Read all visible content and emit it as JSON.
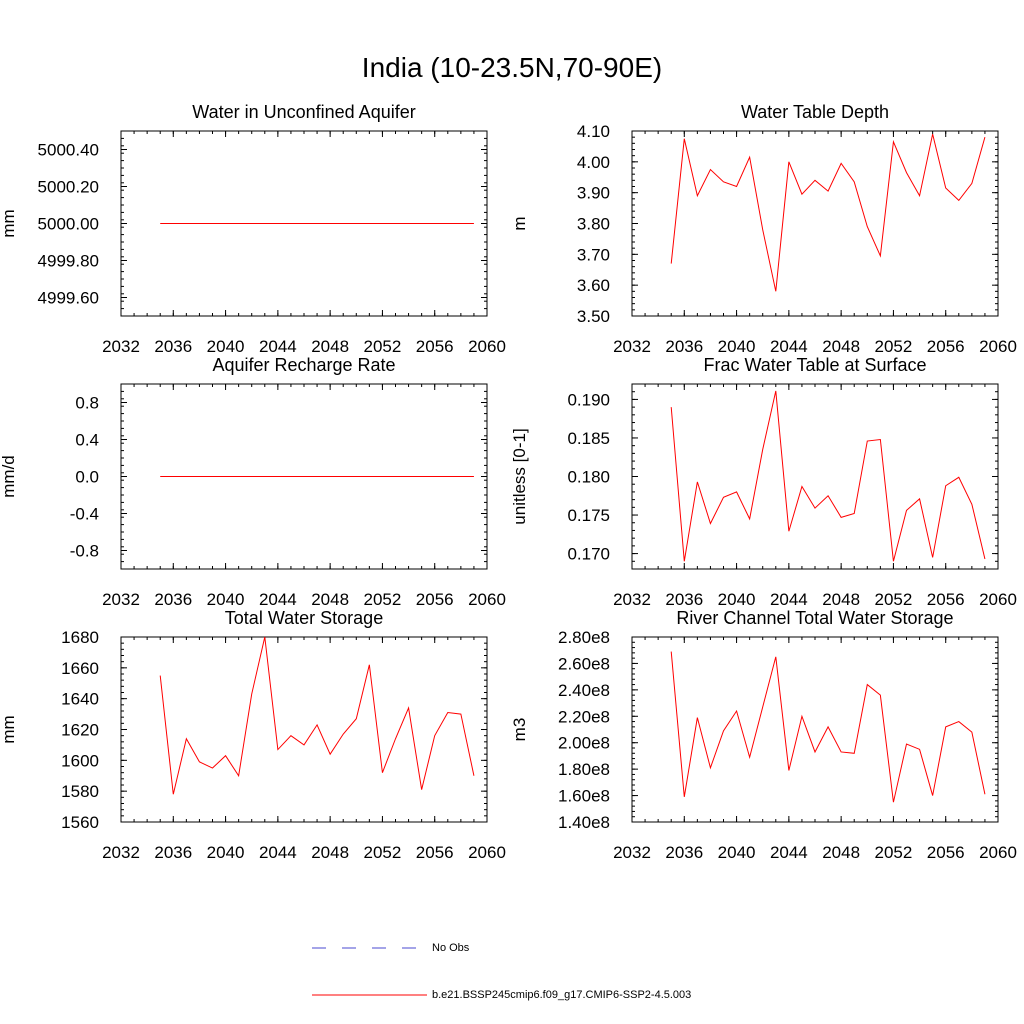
{
  "page": {
    "title": "India (10-23.5N,70-90E)"
  },
  "legend": {
    "entries": [
      {
        "label": "No Obs",
        "style": "dashed",
        "color": "#4a4ad0"
      },
      {
        "label": "b.e21.BSSP245cmip6.f09_g17.CMIP6-SSP2-4.5.003",
        "style": "solid",
        "color": "#ff0000"
      }
    ]
  },
  "line_color": "#ff0000",
  "chart_data": [
    {
      "type": "line",
      "title": "Water in Unconfined Aquifer",
      "xlabel": "",
      "ylabel": "mm",
      "xlim": [
        2032,
        2060
      ],
      "ylim": [
        4999.5,
        5000.5
      ],
      "xticks": [
        2032,
        2036,
        2040,
        2044,
        2048,
        2052,
        2056,
        2060
      ],
      "xtick_labels": [
        "2032",
        "2036",
        "2040",
        "2044",
        "2048",
        "2052",
        "2056",
        "2060"
      ],
      "yticks": [
        4999.6,
        4999.8,
        5000.0,
        5000.2,
        5000.4
      ],
      "ytick_labels": [
        "4999.60",
        "4999.80",
        "5000.00",
        "5000.20",
        "5000.40"
      ],
      "series": [
        {
          "x": [
            2035,
            2036,
            2037,
            2038,
            2039,
            2040,
            2041,
            2042,
            2043,
            2044,
            2045,
            2046,
            2047,
            2048,
            2049,
            2050,
            2051,
            2052,
            2053,
            2054,
            2055,
            2056,
            2057,
            2058,
            2059
          ],
          "y": [
            5000,
            5000,
            5000,
            5000,
            5000,
            5000,
            5000,
            5000,
            5000,
            5000,
            5000,
            5000,
            5000,
            5000,
            5000,
            5000,
            5000,
            5000,
            5000,
            5000,
            5000,
            5000,
            5000,
            5000,
            5000
          ]
        }
      ]
    },
    {
      "type": "line",
      "title": "Water Table Depth",
      "xlabel": "",
      "ylabel": "m",
      "xlim": [
        2032,
        2060
      ],
      "ylim": [
        3.5,
        4.1
      ],
      "xticks": [
        2032,
        2036,
        2040,
        2044,
        2048,
        2052,
        2056,
        2060
      ],
      "xtick_labels": [
        "2032",
        "2036",
        "2040",
        "2044",
        "2048",
        "2052",
        "2056",
        "2060"
      ],
      "yticks": [
        3.5,
        3.6,
        3.7,
        3.8,
        3.9,
        4.0,
        4.1
      ],
      "ytick_labels": [
        "3.50",
        "3.60",
        "3.70",
        "3.80",
        "3.90",
        "4.00",
        "4.10"
      ],
      "series": [
        {
          "x": [
            2035,
            2036,
            2037,
            2038,
            2039,
            2040,
            2041,
            2042,
            2043,
            2044,
            2045,
            2046,
            2047,
            2048,
            2049,
            2050,
            2051,
            2052,
            2053,
            2054,
            2055,
            2056,
            2057,
            2058,
            2059
          ],
          "y": [
            3.67,
            4.075,
            3.89,
            3.975,
            3.935,
            3.92,
            4.015,
            3.78,
            3.58,
            4.0,
            3.895,
            3.94,
            3.905,
            3.995,
            3.935,
            3.79,
            3.695,
            4.065,
            3.965,
            3.89,
            4.09,
            3.915,
            3.875,
            3.93,
            4.08
          ]
        }
      ]
    },
    {
      "type": "line",
      "title": "Aquifer Recharge Rate",
      "xlabel": "",
      "ylabel": "mm/d",
      "xlim": [
        2032,
        2060
      ],
      "ylim": [
        -1.0,
        1.0
      ],
      "xticks": [
        2032,
        2036,
        2040,
        2044,
        2048,
        2052,
        2056,
        2060
      ],
      "xtick_labels": [
        "2032",
        "2036",
        "2040",
        "2044",
        "2048",
        "2052",
        "2056",
        "2060"
      ],
      "yticks": [
        -0.8,
        -0.4,
        0.0,
        0.4,
        0.8
      ],
      "ytick_labels": [
        "-0.8",
        "-0.4",
        "0.0",
        "0.4",
        "0.8"
      ],
      "series": [
        {
          "x": [
            2035,
            2036,
            2037,
            2038,
            2039,
            2040,
            2041,
            2042,
            2043,
            2044,
            2045,
            2046,
            2047,
            2048,
            2049,
            2050,
            2051,
            2052,
            2053,
            2054,
            2055,
            2056,
            2057,
            2058,
            2059
          ],
          "y": [
            0,
            0,
            0,
            0,
            0,
            0,
            0,
            0,
            0,
            0,
            0,
            0,
            0,
            0,
            0,
            0,
            0,
            0,
            0,
            0,
            0,
            0,
            0,
            0,
            0
          ]
        }
      ]
    },
    {
      "type": "line",
      "title": "Frac Water Table at Surface",
      "xlabel": "",
      "ylabel": "unitless [0-1]",
      "xlim": [
        2032,
        2060
      ],
      "ylim": [
        0.168,
        0.192
      ],
      "xticks": [
        2032,
        2036,
        2040,
        2044,
        2048,
        2052,
        2056,
        2060
      ],
      "xtick_labels": [
        "2032",
        "2036",
        "2040",
        "2044",
        "2048",
        "2052",
        "2056",
        "2060"
      ],
      "yticks": [
        0.17,
        0.175,
        0.18,
        0.185,
        0.19
      ],
      "ytick_labels": [
        "0.170",
        "0.175",
        "0.180",
        "0.185",
        "0.190"
      ],
      "series": [
        {
          "x": [
            2035,
            2036,
            2037,
            2038,
            2039,
            2040,
            2041,
            2042,
            2043,
            2044,
            2045,
            2046,
            2047,
            2048,
            2049,
            2050,
            2051,
            2052,
            2053,
            2054,
            2055,
            2056,
            2057,
            2058,
            2059
          ],
          "y": [
            0.189,
            0.169,
            0.1793,
            0.1739,
            0.1773,
            0.178,
            0.1745,
            0.1835,
            0.1911,
            0.1729,
            0.1787,
            0.1759,
            0.1775,
            0.1747,
            0.1752,
            0.1846,
            0.1848,
            0.169,
            0.1756,
            0.1771,
            0.1695,
            0.1788,
            0.1799,
            0.1764,
            0.1693
          ]
        }
      ]
    },
    {
      "type": "line",
      "title": "Total Water Storage",
      "xlabel": "",
      "ylabel": "mm",
      "xlim": [
        2032,
        2060
      ],
      "ylim": [
        1560,
        1680
      ],
      "xticks": [
        2032,
        2036,
        2040,
        2044,
        2048,
        2052,
        2056,
        2060
      ],
      "xtick_labels": [
        "2032",
        "2036",
        "2040",
        "2044",
        "2048",
        "2052",
        "2056",
        "2060"
      ],
      "yticks": [
        1560,
        1580,
        1600,
        1620,
        1640,
        1660,
        1680
      ],
      "ytick_labels": [
        "1560",
        "1580",
        "1600",
        "1620",
        "1640",
        "1660",
        "1680"
      ],
      "series": [
        {
          "x": [
            2035,
            2036,
            2037,
            2038,
            2039,
            2040,
            2041,
            2042,
            2043,
            2044,
            2045,
            2046,
            2047,
            2048,
            2049,
            2050,
            2051,
            2052,
            2053,
            2054,
            2055,
            2056,
            2057,
            2058,
            2059
          ],
          "y": [
            1655,
            1578,
            1614,
            1599,
            1595,
            1603,
            1590,
            1643,
            1680,
            1607,
            1616,
            1610,
            1623,
            1604,
            1617,
            1627,
            1662,
            1592,
            1614,
            1634,
            1581,
            1616,
            1631,
            1630,
            1590
          ]
        }
      ]
    },
    {
      "type": "line",
      "title": "River Channel Total Water Storage",
      "xlabel": "",
      "ylabel": "m3",
      "xlim": [
        2032,
        2060
      ],
      "ylim": [
        140000000,
        280000000
      ],
      "xticks": [
        2032,
        2036,
        2040,
        2044,
        2048,
        2052,
        2056,
        2060
      ],
      "xtick_labels": [
        "2032",
        "2036",
        "2040",
        "2044",
        "2048",
        "2052",
        "2056",
        "2060"
      ],
      "yticks": [
        140000000,
        160000000,
        180000000,
        200000000,
        220000000,
        240000000,
        260000000,
        280000000
      ],
      "ytick_labels": [
        "1.40e8",
        "1.60e8",
        "1.80e8",
        "2.00e8",
        "2.20e8",
        "2.40e8",
        "2.60e8",
        "2.80e8"
      ],
      "series": [
        {
          "x": [
            2035,
            2036,
            2037,
            2038,
            2039,
            2040,
            2041,
            2042,
            2043,
            2044,
            2045,
            2046,
            2047,
            2048,
            2049,
            2050,
            2051,
            2052,
            2053,
            2054,
            2055,
            2056,
            2057,
            2058,
            2059
          ],
          "y": [
            269000000,
            159000000,
            219000000,
            181000000,
            209000000,
            224000000,
            189000000,
            227000000,
            265000000,
            179000000,
            220000000,
            193000000,
            212000000,
            193000000,
            192000000,
            244000000,
            236000000,
            155000000,
            199000000,
            195000000,
            160000000,
            212000000,
            216000000,
            208000000,
            161000000
          ]
        }
      ]
    }
  ]
}
